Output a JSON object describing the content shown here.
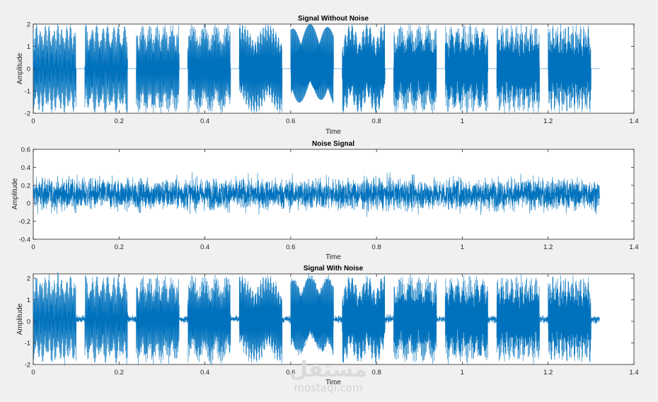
{
  "chart_data": [
    {
      "type": "line",
      "title": "Signal Without Noise",
      "xlabel": "Time",
      "ylabel": "Amplitude",
      "xlim": [
        0,
        1.4
      ],
      "ylim": [
        -2,
        2
      ],
      "xticks": [
        "0",
        "0.2",
        "0.4",
        "0.6",
        "0.8",
        "1",
        "1.2",
        "1.4"
      ],
      "yticks": [
        "2",
        "1",
        "0",
        "-1",
        "-2"
      ],
      "signal_end_time": 1.32,
      "tone_bursts": [
        {
          "start": 0.0,
          "end": 0.1
        },
        {
          "start": 0.12,
          "end": 0.22
        },
        {
          "start": 0.24,
          "end": 0.34
        },
        {
          "start": 0.36,
          "end": 0.46
        },
        {
          "start": 0.48,
          "end": 0.58
        },
        {
          "start": 0.6,
          "end": 0.7
        },
        {
          "start": 0.72,
          "end": 0.82
        },
        {
          "start": 0.84,
          "end": 0.94
        },
        {
          "start": 0.96,
          "end": 1.06
        },
        {
          "start": 1.08,
          "end": 1.18
        },
        {
          "start": 1.2,
          "end": 1.3
        }
      ],
      "burst_amplitude": 2,
      "color": "#0072bd"
    },
    {
      "type": "line",
      "title": "Noise Signal",
      "xlabel": "Time",
      "ylabel": "Amplitude",
      "xlim": [
        0,
        1.4
      ],
      "ylim": [
        -0.4,
        0.6
      ],
      "xticks": [
        "0",
        "0.2",
        "0.4",
        "0.6",
        "0.8",
        "1",
        "1.2",
        "1.4"
      ],
      "yticks": [
        "0.6",
        "0.4",
        "0.2",
        "0",
        "-0.2",
        "-0.4"
      ],
      "signal_end_time": 1.32,
      "noise_mean": 0.1,
      "noise_spread": 0.12,
      "color": "#0072bd"
    },
    {
      "type": "line",
      "title": "Signal With Noise",
      "xlabel": "Time",
      "ylabel": "Amplitude",
      "xlim": [
        0,
        1.4
      ],
      "ylim": [
        -2,
        2.2
      ],
      "xticks": [
        "0",
        "0.2",
        "0.4",
        "0.6",
        "0.8",
        "1",
        "1.2",
        "1.4"
      ],
      "yticks": [
        "2",
        "1",
        "0",
        "-1",
        "-2"
      ],
      "signal_end_time": 1.32,
      "color": "#0072bd"
    }
  ],
  "watermark": {
    "arabic": "مستقل",
    "latin": "mostaql.com"
  }
}
